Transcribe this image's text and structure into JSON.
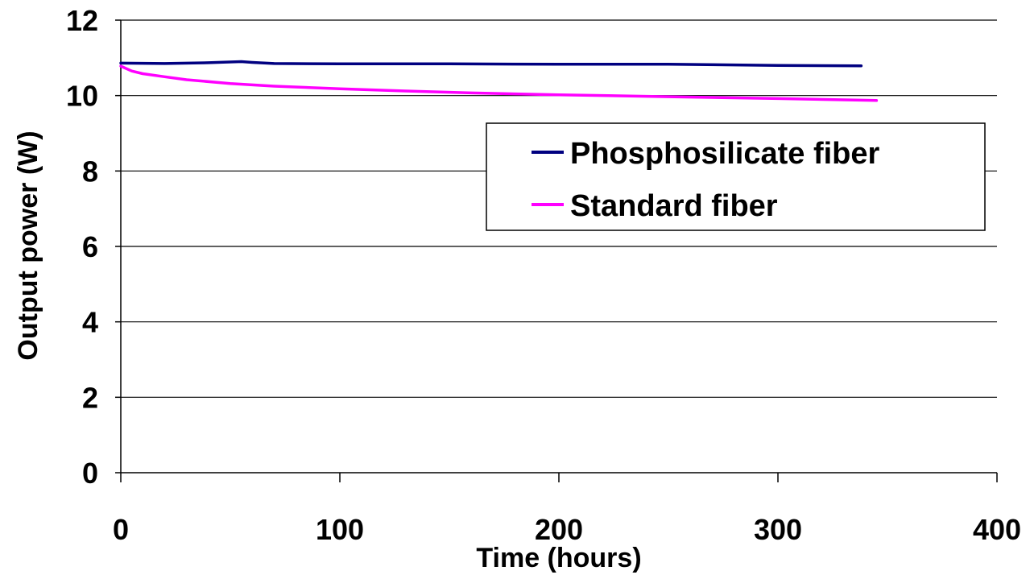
{
  "chart_data": {
    "type": "line",
    "title": "",
    "xlabel": "Time (hours)",
    "ylabel": "Output power (W)",
    "xlim": [
      0,
      400
    ],
    "ylim": [
      0,
      12
    ],
    "x_ticks": [
      "0",
      "100",
      "200",
      "300",
      "400"
    ],
    "y_ticks": [
      "0",
      "2",
      "4",
      "6",
      "8",
      "10",
      "12"
    ],
    "grid": "horizontal",
    "legend_position": "upper-right",
    "series": [
      {
        "name": "Phosphosilicate fiber",
        "color": "#000080",
        "x": [
          0,
          20,
          40,
          55,
          60,
          70,
          100,
          150,
          200,
          250,
          300,
          338
        ],
        "y": [
          10.86,
          10.85,
          10.87,
          10.9,
          10.88,
          10.85,
          10.84,
          10.84,
          10.83,
          10.83,
          10.8,
          10.79
        ]
      },
      {
        "name": "Standard fiber",
        "color": "#ff00ff",
        "x": [
          0,
          5,
          10,
          20,
          30,
          50,
          70,
          100,
          130,
          160,
          200,
          250,
          300,
          345
        ],
        "y": [
          10.78,
          10.65,
          10.58,
          10.5,
          10.42,
          10.32,
          10.25,
          10.18,
          10.12,
          10.07,
          10.02,
          9.97,
          9.92,
          9.87
        ]
      }
    ]
  }
}
